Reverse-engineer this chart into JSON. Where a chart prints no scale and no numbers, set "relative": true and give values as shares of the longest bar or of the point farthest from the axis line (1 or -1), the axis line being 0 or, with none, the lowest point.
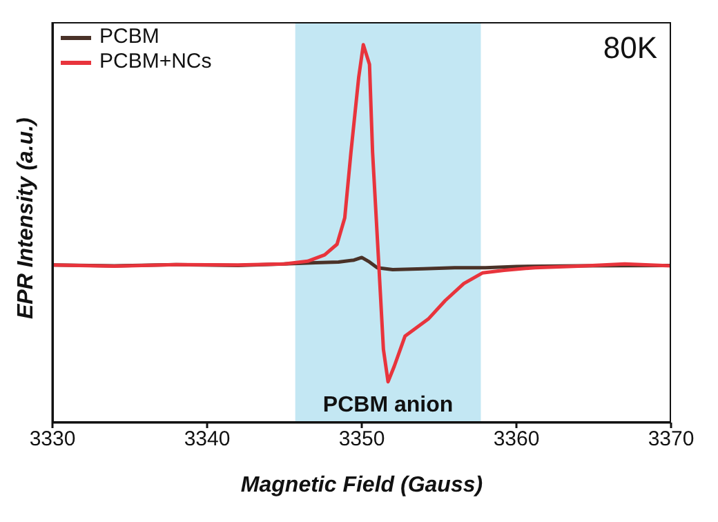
{
  "chart_data": {
    "type": "line",
    "xlabel": "Magnetic Field (Gauss)",
    "ylabel": "EPR Intensity (a.u.)",
    "relative": true,
    "xlim": [
      3330,
      3370
    ],
    "xticks": [
      3330,
      3340,
      3350,
      3360,
      3370
    ],
    "legend": "top left",
    "marker": "none",
    "line_style": "solid",
    "series": [
      {
        "name": "PCBM",
        "color": "#4a3228",
        "x": [
          3330,
          3334,
          3338,
          3342,
          3345,
          3347,
          3348.5,
          3349.5,
          3350,
          3350.5,
          3351,
          3352,
          3354,
          3356,
          3358,
          3360,
          3364,
          3370
        ],
        "values": [
          0.417,
          0.415,
          0.418,
          0.416,
          0.42,
          0.423,
          0.425,
          0.43,
          0.437,
          0.425,
          0.41,
          0.405,
          0.407,
          0.41,
          0.41,
          0.413,
          0.415,
          0.416
        ]
      },
      {
        "name": "PCBM+NCs",
        "color": "#e8343c",
        "x": [
          3330,
          3334,
          3338,
          3342,
          3345,
          3346.5,
          3347.6,
          3348.4,
          3348.9,
          3349.3,
          3349.8,
          3350.1,
          3350.5,
          3350.7,
          3351.1,
          3351.4,
          3351.7,
          3352.1,
          3352.8,
          3354.3,
          3355.4,
          3356.6,
          3357.8,
          3359.2,
          3361.2,
          3364,
          3367,
          3370
        ],
        "values": [
          0.417,
          0.414,
          0.418,
          0.417,
          0.42,
          0.427,
          0.444,
          0.472,
          0.542,
          0.715,
          0.913,
          1,
          0.948,
          0.715,
          0.42,
          0.194,
          0.108,
          0.149,
          0.229,
          0.274,
          0.323,
          0.368,
          0.396,
          0.403,
          0.41,
          0.414,
          0.42,
          0.415
        ]
      }
    ],
    "bands": [
      {
        "axis": "x",
        "from": 3345.7,
        "to": 3357.7,
        "label": "PCBM anion",
        "color": "#bde4f2"
      }
    ],
    "annotations": [
      "80K"
    ]
  }
}
